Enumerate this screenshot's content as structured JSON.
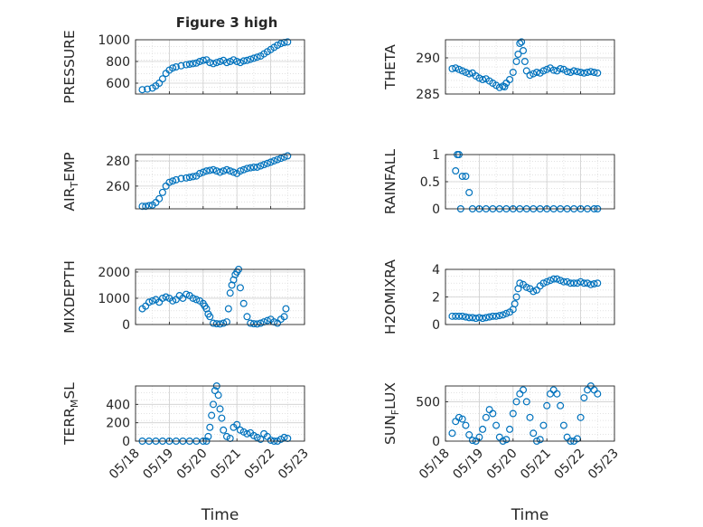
{
  "figure": {
    "title": "Figure 3 high",
    "xlabel": "Time"
  },
  "style": {
    "marker_color": "#0072BD",
    "axis_color": "#262626",
    "grid_color": "#d9d9d9",
    "background": "#ffffff"
  },
  "chart_data": [
    {
      "type": "scatter",
      "ylabel": "PRESSURE",
      "xlim": [
        0,
        5
      ],
      "ylim": [
        500,
        1000
      ],
      "yticks": [
        600,
        800,
        1000
      ],
      "ytick_labels": [
        "600",
        "800",
        "1000"
      ],
      "x": [
        0.2,
        0.35,
        0.5,
        0.6,
        0.7,
        0.8,
        0.9,
        1.0,
        1.1,
        1.2,
        1.35,
        1.5,
        1.6,
        1.7,
        1.8,
        1.9,
        2.0,
        2.1,
        2.2,
        2.3,
        2.4,
        2.5,
        2.6,
        2.7,
        2.8,
        2.9,
        3.0,
        3.1,
        3.2,
        3.3,
        3.4,
        3.5,
        3.6,
        3.7,
        3.8,
        3.9,
        4.0,
        4.1,
        4.2,
        4.3,
        4.4,
        4.5
      ],
      "y": [
        540,
        545,
        555,
        575,
        600,
        640,
        690,
        720,
        740,
        750,
        760,
        770,
        775,
        780,
        785,
        800,
        810,
        815,
        790,
        780,
        790,
        800,
        810,
        790,
        800,
        815,
        800,
        790,
        805,
        810,
        820,
        830,
        840,
        850,
        870,
        890,
        910,
        930,
        950,
        965,
        975,
        980
      ]
    },
    {
      "type": "scatter",
      "ylabel": "THETA",
      "xlim": [
        0,
        5
      ],
      "ylim": [
        285,
        292.5
      ],
      "yticks": [
        285,
        290
      ],
      "ytick_labels": [
        "285",
        "290"
      ],
      "x": [
        0.2,
        0.3,
        0.4,
        0.5,
        0.6,
        0.7,
        0.8,
        0.9,
        1.0,
        1.1,
        1.2,
        1.3,
        1.4,
        1.5,
        1.6,
        1.7,
        1.75,
        1.8,
        1.9,
        2.0,
        2.1,
        2.15,
        2.2,
        2.25,
        2.3,
        2.35,
        2.4,
        2.5,
        2.6,
        2.7,
        2.8,
        2.9,
        3.0,
        3.1,
        3.2,
        3.3,
        3.4,
        3.5,
        3.6,
        3.7,
        3.8,
        3.9,
        4.0,
        4.1,
        4.2,
        4.3,
        4.4,
        4.5
      ],
      "y": [
        288.5,
        288.6,
        288.4,
        288.2,
        288.0,
        287.8,
        287.9,
        287.5,
        287.2,
        287.0,
        287.1,
        286.8,
        286.5,
        286.2,
        285.9,
        286.1,
        286.0,
        286.5,
        287.0,
        288.0,
        289.5,
        290.5,
        292.0,
        292.2,
        291.0,
        289.5,
        288.2,
        287.6,
        287.8,
        288.0,
        287.9,
        288.2,
        288.4,
        288.6,
        288.3,
        288.2,
        288.5,
        288.4,
        288.1,
        288.0,
        288.2,
        288.1,
        288.0,
        287.9,
        288.0,
        288.1,
        288.0,
        287.9
      ]
    },
    {
      "type": "scatter",
      "ylabel": "AIR_TEMP",
      "xlim": [
        0,
        5
      ],
      "ylim": [
        242,
        285
      ],
      "yticks": [
        260,
        280
      ],
      "ytick_labels": [
        "260",
        "280"
      ],
      "x": [
        0.2,
        0.3,
        0.4,
        0.5,
        0.6,
        0.7,
        0.8,
        0.9,
        1.0,
        1.1,
        1.2,
        1.35,
        1.5,
        1.6,
        1.7,
        1.8,
        1.9,
        2.0,
        2.1,
        2.2,
        2.3,
        2.4,
        2.5,
        2.6,
        2.7,
        2.8,
        2.9,
        3.0,
        3.1,
        3.2,
        3.3,
        3.4,
        3.5,
        3.6,
        3.7,
        3.8,
        3.9,
        4.0,
        4.1,
        4.2,
        4.3,
        4.4,
        4.5
      ],
      "y": [
        244,
        244,
        244.5,
        245,
        247,
        250,
        255,
        260,
        263,
        264,
        265,
        266,
        266.5,
        267,
        267.5,
        268,
        270,
        271,
        272,
        272.5,
        273,
        272,
        271,
        272,
        273,
        272,
        271,
        270,
        272,
        273,
        274,
        274.5,
        275,
        275,
        276,
        277,
        278,
        279,
        280,
        281,
        282,
        283,
        284
      ]
    },
    {
      "type": "scatter",
      "ylabel": "RAINFALL",
      "xlim": [
        0,
        5
      ],
      "ylim": [
        0,
        1
      ],
      "yticks": [
        0,
        0.5,
        1
      ],
      "ytick_labels": [
        "0",
        "0.5",
        "1"
      ],
      "x": [
        0.3,
        0.35,
        0.4,
        0.45,
        0.5,
        0.6,
        0.7,
        0.8,
        1.0,
        1.2,
        1.4,
        1.6,
        1.8,
        2.0,
        2.2,
        2.4,
        2.6,
        2.8,
        3.0,
        3.2,
        3.4,
        3.6,
        3.8,
        4.0,
        4.2,
        4.4,
        4.5
      ],
      "y": [
        0.7,
        1.0,
        1.0,
        0.0,
        0.6,
        0.6,
        0.3,
        0,
        0,
        0,
        0,
        0,
        0,
        0,
        0,
        0,
        0,
        0,
        0,
        0,
        0,
        0,
        0,
        0,
        0,
        0,
        0
      ]
    },
    {
      "type": "scatter",
      "ylabel": "MIXDEPTH",
      "xlim": [
        0,
        5
      ],
      "ylim": [
        0,
        2100
      ],
      "yticks": [
        0,
        1000,
        2000
      ],
      "ytick_labels": [
        "0",
        "1000",
        "2000"
      ],
      "x": [
        0.2,
        0.3,
        0.4,
        0.5,
        0.6,
        0.7,
        0.8,
        0.9,
        1.0,
        1.1,
        1.2,
        1.3,
        1.4,
        1.5,
        1.6,
        1.7,
        1.8,
        1.9,
        2.0,
        2.05,
        2.1,
        2.15,
        2.2,
        2.3,
        2.4,
        2.5,
        2.6,
        2.7,
        2.75,
        2.8,
        2.85,
        2.9,
        2.95,
        3.0,
        3.05,
        3.1,
        3.2,
        3.3,
        3.4,
        3.5,
        3.6,
        3.7,
        3.8,
        3.9,
        4.0,
        4.1,
        4.2,
        4.3,
        4.4,
        4.45
      ],
      "y": [
        600,
        700,
        850,
        900,
        950,
        850,
        1000,
        1050,
        1000,
        900,
        950,
        1100,
        1000,
        1150,
        1100,
        1000,
        950,
        900,
        800,
        700,
        600,
        400,
        300,
        50,
        30,
        20,
        50,
        100,
        600,
        1200,
        1500,
        1700,
        1900,
        2000,
        2100,
        1400,
        800,
        300,
        50,
        30,
        20,
        50,
        100,
        150,
        200,
        100,
        50,
        200,
        300,
        600
      ]
    },
    {
      "type": "scatter",
      "ylabel": "H2OMIXRA",
      "xlim": [
        0,
        5
      ],
      "ylim": [
        0,
        4
      ],
      "yticks": [
        0,
        2,
        4
      ],
      "ytick_labels": [
        "0",
        "2",
        "4"
      ],
      "x": [
        0.2,
        0.3,
        0.4,
        0.5,
        0.6,
        0.7,
        0.8,
        0.9,
        1.0,
        1.1,
        1.2,
        1.3,
        1.4,
        1.5,
        1.6,
        1.7,
        1.8,
        1.9,
        2.0,
        2.05,
        2.1,
        2.15,
        2.2,
        2.3,
        2.4,
        2.5,
        2.6,
        2.7,
        2.8,
        2.9,
        3.0,
        3.1,
        3.2,
        3.3,
        3.4,
        3.5,
        3.6,
        3.7,
        3.8,
        3.9,
        4.0,
        4.1,
        4.2,
        4.3,
        4.4,
        4.5
      ],
      "y": [
        0.6,
        0.6,
        0.6,
        0.6,
        0.55,
        0.5,
        0.5,
        0.45,
        0.5,
        0.45,
        0.5,
        0.55,
        0.6,
        0.6,
        0.65,
        0.7,
        0.8,
        0.9,
        1.1,
        1.5,
        2.0,
        2.6,
        3.0,
        2.9,
        2.7,
        2.6,
        2.4,
        2.5,
        2.8,
        3.0,
        3.1,
        3.2,
        3.3,
        3.3,
        3.2,
        3.1,
        3.1,
        3.0,
        3.0,
        3.0,
        3.1,
        3.0,
        3.0,
        2.9,
        2.95,
        3.0
      ]
    },
    {
      "type": "scatter",
      "ylabel": "TERR_MSL",
      "xlim": [
        0,
        5
      ],
      "ylim": [
        0,
        600
      ],
      "yticks": [
        0,
        200,
        400
      ],
      "ytick_labels": [
        "0",
        "200",
        "400"
      ],
      "x": [
        0.2,
        0.4,
        0.6,
        0.8,
        1.0,
        1.2,
        1.4,
        1.6,
        1.8,
        2.0,
        2.1,
        2.15,
        2.2,
        2.25,
        2.3,
        2.35,
        2.4,
        2.45,
        2.5,
        2.55,
        2.6,
        2.7,
        2.8,
        2.9,
        3.0,
        3.1,
        3.2,
        3.3,
        3.4,
        3.5,
        3.6,
        3.7,
        3.8,
        3.9,
        4.0,
        4.1,
        4.2,
        4.3,
        4.4,
        4.5
      ],
      "y": [
        0,
        0,
        0,
        0,
        0,
        0,
        0,
        0,
        0,
        0,
        0,
        50,
        150,
        280,
        400,
        550,
        600,
        500,
        350,
        250,
        120,
        50,
        30,
        150,
        180,
        120,
        100,
        80,
        90,
        60,
        40,
        20,
        80,
        50,
        10,
        0,
        0,
        20,
        40,
        30
      ]
    },
    {
      "type": "scatter",
      "ylabel": "SUN_FLUX",
      "xlim": [
        0,
        5
      ],
      "ylim": [
        0,
        700
      ],
      "yticks": [
        0,
        500
      ],
      "ytick_labels": [
        "0",
        "500"
      ],
      "x": [
        0.2,
        0.3,
        0.4,
        0.5,
        0.6,
        0.7,
        0.8,
        0.9,
        1.0,
        1.1,
        1.2,
        1.3,
        1.4,
        1.5,
        1.6,
        1.7,
        1.8,
        1.9,
        2.0,
        2.1,
        2.2,
        2.3,
        2.4,
        2.5,
        2.6,
        2.7,
        2.8,
        2.9,
        3.0,
        3.1,
        3.2,
        3.3,
        3.4,
        3.5,
        3.6,
        3.7,
        3.8,
        3.9,
        4.0,
        4.1,
        4.2,
        4.3,
        4.4,
        4.5
      ],
      "y": [
        100,
        250,
        300,
        280,
        200,
        80,
        10,
        0,
        50,
        150,
        300,
        400,
        350,
        200,
        50,
        0,
        20,
        150,
        350,
        500,
        600,
        650,
        500,
        300,
        100,
        0,
        20,
        200,
        450,
        600,
        650,
        600,
        450,
        200,
        50,
        0,
        0,
        30,
        300,
        550,
        650,
        700,
        650,
        600
      ]
    }
  ],
  "x_axis": {
    "tick_values": [
      0,
      1,
      2,
      3,
      4,
      5
    ],
    "tick_labels": [
      "05/18",
      "05/19",
      "05/20",
      "05/21",
      "05/22",
      "05/23"
    ]
  }
}
